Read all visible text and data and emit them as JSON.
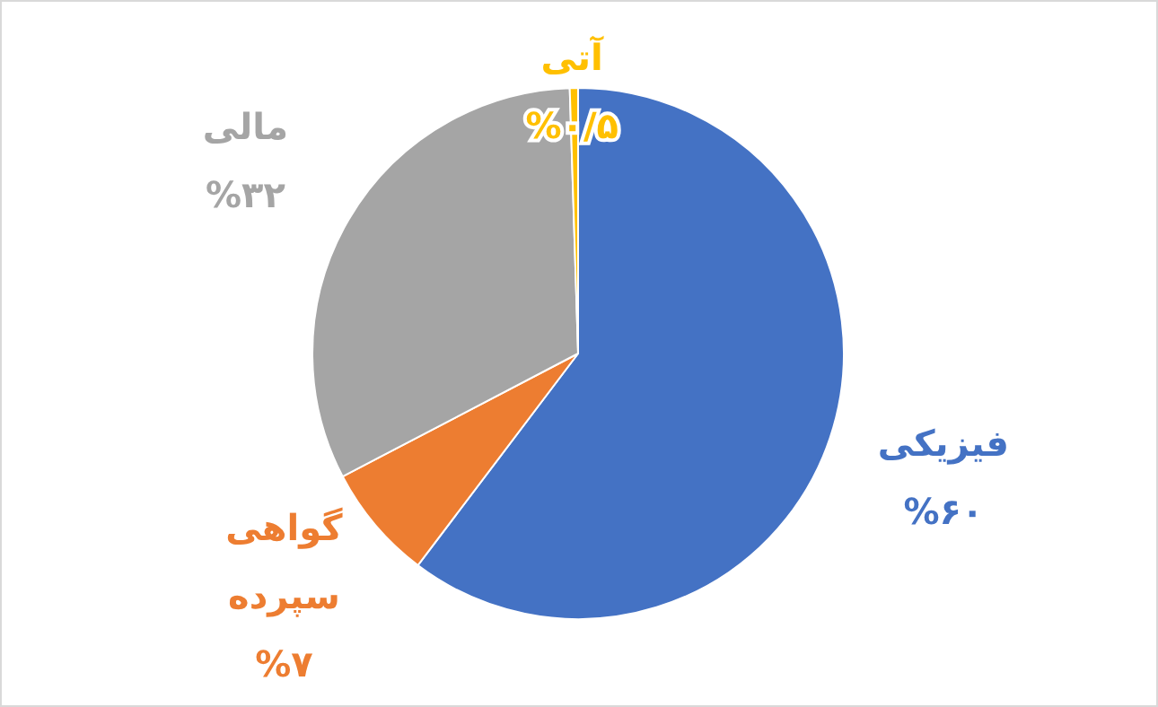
{
  "chart_data": {
    "type": "pie",
    "categories": [
      "فیزیکی",
      "گواهی سپرده",
      "مالی",
      "آتی"
    ],
    "values": [
      60,
      7,
      32,
      0.5
    ],
    "colors": [
      "#4472c4",
      "#ed7d31",
      "#a5a5a5",
      "#ffc000"
    ],
    "value_labels": [
      "%۶۰",
      "%۷",
      "%۳۲",
      "%۰/۵"
    ]
  }
}
